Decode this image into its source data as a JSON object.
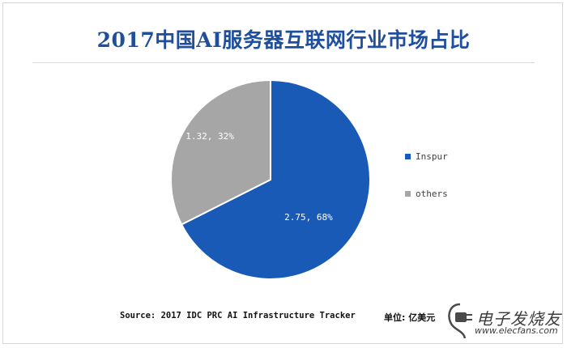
{
  "chart_data": {
    "type": "pie",
    "title": "2017中国AI服务器互联网行业市场占比",
    "slices": [
      {
        "name": "Inspur",
        "value": 2.75,
        "percent": 68,
        "label": "2.75, 68%",
        "color": "#1a5ab7"
      },
      {
        "name": "others",
        "value": 1.32,
        "percent": 32,
        "label": "1.32, 32%",
        "color": "#a6a6a6"
      }
    ],
    "legend_position": "right"
  },
  "footer": {
    "source": "Source: 2017 IDC PRC AI Infrastructure Tracker",
    "unit": "单位: 亿美元"
  },
  "watermark": {
    "brand": "电子发烧友",
    "url": "www.elecfans.com"
  }
}
